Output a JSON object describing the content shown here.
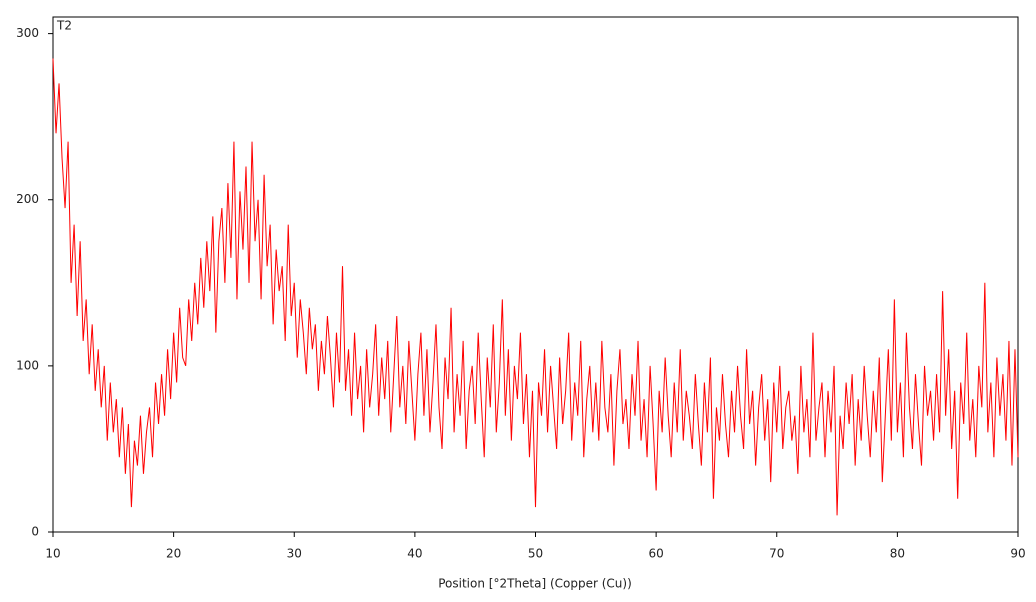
{
  "chart_data": {
    "type": "line",
    "annotation": "T2",
    "x_label": "Position [°2Theta] (Copper (Cu))",
    "color": "#ff0000",
    "xlim": [
      10,
      90
    ],
    "xticks": [
      10,
      20,
      30,
      40,
      50,
      60,
      70,
      80,
      90
    ],
    "ylim": [
      0,
      310
    ],
    "yticks": [
      0,
      100,
      200,
      300
    ],
    "x": [
      10,
      10.25,
      10.5,
      10.75,
      11,
      11.25,
      11.5,
      11.75,
      12,
      12.25,
      12.5,
      12.75,
      13,
      13.25,
      13.5,
      13.75,
      14,
      14.25,
      14.5,
      14.75,
      15,
      15.25,
      15.5,
      15.75,
      16,
      16.25,
      16.5,
      16.75,
      17,
      17.25,
      17.5,
      17.75,
      18,
      18.25,
      18.5,
      18.75,
      19,
      19.25,
      19.5,
      19.75,
      20,
      20.25,
      20.5,
      20.75,
      21,
      21.25,
      21.5,
      21.75,
      22,
      22.25,
      22.5,
      22.75,
      23,
      23.25,
      23.5,
      23.75,
      24,
      24.25,
      24.5,
      24.75,
      25,
      25.25,
      25.5,
      25.75,
      26,
      26.25,
      26.5,
      26.75,
      27,
      27.25,
      27.5,
      27.75,
      28,
      28.25,
      28.5,
      28.75,
      29,
      29.25,
      29.5,
      29.75,
      30,
      30.25,
      30.5,
      30.75,
      31,
      31.25,
      31.5,
      31.75,
      32,
      32.25,
      32.5,
      32.75,
      33,
      33.25,
      33.5,
      33.75,
      34,
      34.25,
      34.5,
      34.75,
      35,
      35.25,
      35.5,
      35.75,
      36,
      36.25,
      36.5,
      36.75,
      37,
      37.25,
      37.5,
      37.75,
      38,
      38.25,
      38.5,
      38.75,
      39,
      39.25,
      39.5,
      39.75,
      40,
      40.25,
      40.5,
      40.75,
      41,
      41.25,
      41.5,
      41.75,
      42,
      42.25,
      42.5,
      42.75,
      43,
      43.25,
      43.5,
      43.75,
      44,
      44.25,
      44.5,
      44.75,
      45,
      45.25,
      45.5,
      45.75,
      46,
      46.25,
      46.5,
      46.75,
      47,
      47.25,
      47.5,
      47.75,
      48,
      48.25,
      48.5,
      48.75,
      49,
      49.25,
      49.5,
      49.75,
      50,
      50.25,
      50.5,
      50.75,
      51,
      51.25,
      51.5,
      51.75,
      52,
      52.25,
      52.5,
      52.75,
      53,
      53.25,
      53.5,
      53.75,
      54,
      54.25,
      54.5,
      54.75,
      55,
      55.25,
      55.5,
      55.75,
      56,
      56.25,
      56.5,
      56.75,
      57,
      57.25,
      57.5,
      57.75,
      58,
      58.25,
      58.5,
      58.75,
      59,
      59.25,
      59.5,
      59.75,
      60,
      60.25,
      60.5,
      60.75,
      61,
      61.25,
      61.5,
      61.75,
      62,
      62.25,
      62.5,
      62.75,
      63,
      63.25,
      63.5,
      63.75,
      64,
      64.25,
      64.5,
      64.75,
      65,
      65.25,
      65.5,
      65.75,
      66,
      66.25,
      66.5,
      66.75,
      67,
      67.25,
      67.5,
      67.75,
      68,
      68.25,
      68.5,
      68.75,
      69,
      69.25,
      69.5,
      69.75,
      70,
      70.25,
      70.5,
      70.75,
      71,
      71.25,
      71.5,
      71.75,
      72,
      72.25,
      72.5,
      72.75,
      73,
      73.25,
      73.5,
      73.75,
      74,
      74.25,
      74.5,
      74.75,
      75,
      75.25,
      75.5,
      75.75,
      76,
      76.25,
      76.5,
      76.75,
      77,
      77.25,
      77.5,
      77.75,
      78,
      78.25,
      78.5,
      78.75,
      79,
      79.25,
      79.5,
      79.75,
      80,
      80.25,
      80.5,
      80.75,
      81,
      81.25,
      81.5,
      81.75,
      82,
      82.25,
      82.5,
      82.75,
      83,
      83.25,
      83.5,
      83.75,
      84,
      84.25,
      84.5,
      84.75,
      85,
      85.25,
      85.5,
      85.75,
      86,
      86.25,
      86.5,
      86.75,
      87,
      87.25,
      87.5,
      87.75,
      88,
      88.25,
      88.5,
      88.75,
      89,
      89.25,
      89.5,
      89.75,
      90
    ],
    "values": [
      285,
      240,
      270,
      225,
      195,
      235,
      150,
      185,
      130,
      175,
      115,
      140,
      95,
      125,
      85,
      110,
      75,
      100,
      55,
      90,
      60,
      80,
      45,
      75,
      35,
      65,
      15,
      55,
      40,
      70,
      35,
      60,
      75,
      45,
      90,
      65,
      95,
      70,
      110,
      80,
      120,
      90,
      135,
      105,
      100,
      140,
      115,
      150,
      125,
      165,
      135,
      175,
      145,
      190,
      120,
      175,
      195,
      150,
      210,
      165,
      235,
      140,
      205,
      170,
      220,
      150,
      235,
      175,
      200,
      140,
      215,
      160,
      185,
      125,
      170,
      145,
      160,
      115,
      185,
      130,
      150,
      105,
      140,
      120,
      95,
      135,
      110,
      125,
      85,
      115,
      95,
      130,
      105,
      75,
      120,
      90,
      160,
      85,
      110,
      70,
      120,
      80,
      100,
      60,
      110,
      75,
      95,
      125,
      70,
      105,
      80,
      115,
      60,
      95,
      130,
      75,
      100,
      65,
      115,
      85,
      55,
      95,
      120,
      70,
      110,
      60,
      90,
      125,
      75,
      50,
      105,
      80,
      135,
      60,
      95,
      70,
      115,
      50,
      85,
      100,
      65,
      120,
      80,
      45,
      105,
      75,
      125,
      60,
      90,
      140,
      70,
      110,
      55,
      100,
      80,
      120,
      65,
      95,
      45,
      85,
      15,
      90,
      70,
      110,
      60,
      100,
      75,
      50,
      105,
      65,
      85,
      120,
      55,
      90,
      70,
      115,
      45,
      80,
      100,
      60,
      90,
      55,
      115,
      75,
      60,
      95,
      40,
      85,
      110,
      65,
      80,
      50,
      95,
      70,
      115,
      55,
      80,
      45,
      100,
      65,
      25,
      85,
      60,
      105,
      70,
      45,
      90,
      60,
      110,
      55,
      85,
      70,
      50,
      95,
      65,
      40,
      90,
      60,
      105,
      20,
      75,
      55,
      95,
      65,
      45,
      85,
      60,
      100,
      70,
      50,
      110,
      65,
      85,
      40,
      75,
      95,
      55,
      80,
      30,
      90,
      60,
      100,
      50,
      75,
      85,
      55,
      70,
      35,
      100,
      60,
      80,
      45,
      120,
      55,
      75,
      90,
      45,
      85,
      60,
      100,
      10,
      70,
      50,
      90,
      65,
      95,
      40,
      80,
      55,
      100,
      70,
      45,
      85,
      60,
      105,
      30,
      70,
      110,
      55,
      140,
      60,
      90,
      45,
      120,
      75,
      50,
      95,
      65,
      40,
      100,
      70,
      85,
      55,
      95,
      60,
      145,
      70,
      110,
      50,
      85,
      20,
      90,
      65,
      120,
      55,
      80,
      45,
      100,
      75,
      150,
      60,
      90,
      45,
      105,
      70,
      95,
      55,
      115,
      40,
      110,
      45
    ]
  }
}
